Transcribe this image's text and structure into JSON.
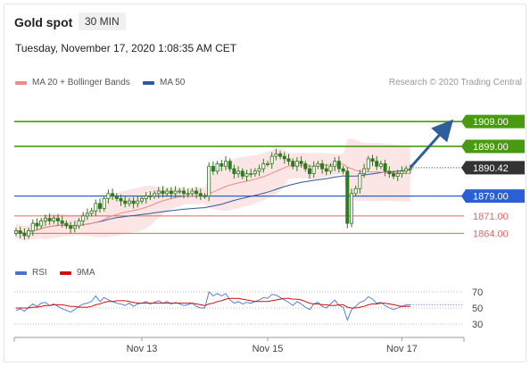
{
  "header": {
    "title": "Gold spot",
    "timeframe": "30 MIN",
    "datetime": "Tuesday, November 17, 2020 1:08:35 AM CET",
    "credit": "Research © 2020 Trading Central"
  },
  "colors": {
    "ma20": "#f08a8a",
    "ma50": "#2e5a9c",
    "bollinger": "#fbdcdc",
    "resistance": "#4a9a10",
    "support_blue": "#2a5fd6",
    "support_red": "#e06666",
    "candle": "#2e7a1e",
    "price_tag": "#333333",
    "rsi": "#4a72d0",
    "rsi_ma": "#d11111",
    "arrow": "#2e5f9c"
  },
  "chart_data": [
    {
      "type": "candlestick",
      "title": "",
      "legend": [
        {
          "name": "MA 20 + Bollinger Bands",
          "color": "#f08a8a"
        },
        {
          "name": "MA 50",
          "color": "#2e5a9c"
        }
      ],
      "x_ticks": [
        {
          "label": "Nov 13",
          "index": 30
        },
        {
          "label": "Nov 15",
          "index": 60
        },
        {
          "label": "Nov 17",
          "index": 92
        }
      ],
      "ylim": [
        1858,
        1922
      ],
      "last_price": {
        "label": "1890.42",
        "value": 1890.42
      },
      "levels": [
        {
          "label": "1909.00",
          "value": 1909.0,
          "kind": "resistance",
          "color": "#4a9a10",
          "boxed": true
        },
        {
          "label": "1899.00",
          "value": 1899.0,
          "kind": "resistance",
          "color": "#4a9a10",
          "boxed": true
        },
        {
          "label": "1879.00",
          "value": 1879.0,
          "kind": "pivot",
          "color": "#2a5fd6",
          "boxed": true
        },
        {
          "label": "1871.00",
          "value": 1871.0,
          "kind": "support",
          "color": "#e06666",
          "boxed": false
        },
        {
          "label": "1864.00",
          "value": 1864.0,
          "kind": "support",
          "color": "#e06666",
          "boxed": false
        }
      ],
      "close": [
        1865,
        1864,
        1863,
        1865,
        1868,
        1867,
        1869,
        1870,
        1869,
        1870,
        1869,
        1868,
        1867,
        1866,
        1867,
        1869,
        1871,
        1872,
        1873,
        1876,
        1874,
        1878,
        1880,
        1879,
        1878,
        1877,
        1876,
        1877,
        1876,
        1877,
        1878,
        1879,
        1879,
        1880,
        1881,
        1880,
        1881,
        1880,
        1881,
        1881,
        1880,
        1880,
        1881,
        1880,
        1879,
        1879,
        1891,
        1889,
        1892,
        1891,
        1893,
        1890,
        1888,
        1889,
        1887,
        1888,
        1888,
        1889,
        1890,
        1892,
        1892,
        1895,
        1896,
        1895,
        1894,
        1893,
        1891,
        1893,
        1892,
        1890,
        1888,
        1891,
        1892,
        1890,
        1889,
        1891,
        1893,
        1890,
        1889,
        1868,
        1880,
        1882,
        1888,
        1890,
        1894,
        1893,
        1891,
        1892,
        1889,
        1888,
        1887,
        1888,
        1889,
        1890,
        1890
      ],
      "annotation": {
        "type": "arrow",
        "from_index": 94,
        "from_value": 1890.42,
        "to_index": 103,
        "to_value": 1907.5
      }
    },
    {
      "type": "line",
      "title": "",
      "legend": [
        {
          "name": "RSI",
          "color": "#4a72d0"
        },
        {
          "name": "9MA",
          "color": "#d11111"
        }
      ],
      "y_ticks": [
        30,
        50,
        70
      ],
      "ylim": [
        20,
        80
      ],
      "series": [
        {
          "name": "RSI",
          "values": [
            47,
            49,
            46,
            51,
            55,
            52,
            56,
            57,
            53,
            55,
            52,
            49,
            47,
            45,
            48,
            52,
            55,
            56,
            58,
            65,
            58,
            63,
            60,
            58,
            56,
            55,
            53,
            56,
            52,
            55,
            56,
            58,
            55,
            57,
            59,
            56,
            58,
            55,
            57,
            55,
            53,
            54,
            56,
            52,
            50,
            50,
            70,
            65,
            68,
            65,
            68,
            60,
            56,
            58,
            55,
            57,
            56,
            58,
            60,
            63,
            62,
            67,
            66,
            63,
            60,
            57,
            53,
            58,
            55,
            51,
            48,
            55,
            57,
            52,
            50,
            55,
            60,
            53,
            51,
            35,
            48,
            52,
            57,
            59,
            64,
            61,
            56,
            57,
            53,
            50,
            48,
            50,
            52,
            54,
            54
          ]
        },
        {
          "name": "9MA",
          "values": [
            50,
            50,
            50,
            50,
            51,
            51,
            52,
            53,
            53,
            54,
            54,
            54,
            53,
            52,
            52,
            51,
            51,
            51,
            52,
            54,
            55,
            57,
            58,
            58,
            59,
            59,
            59,
            58,
            57,
            56,
            56,
            56,
            56,
            56,
            56,
            56,
            56,
            56,
            56,
            56,
            56,
            56,
            56,
            55,
            54,
            53,
            55,
            56,
            58,
            59,
            61,
            62,
            62,
            62,
            61,
            60,
            59,
            58,
            58,
            58,
            58,
            59,
            60,
            61,
            62,
            62,
            61,
            61,
            60,
            58,
            56,
            55,
            55,
            54,
            54,
            53,
            53,
            54,
            54,
            51,
            50,
            50,
            51,
            52,
            54,
            55,
            55,
            56,
            56,
            55,
            54,
            53,
            52,
            52,
            52
          ]
        }
      ]
    }
  ]
}
